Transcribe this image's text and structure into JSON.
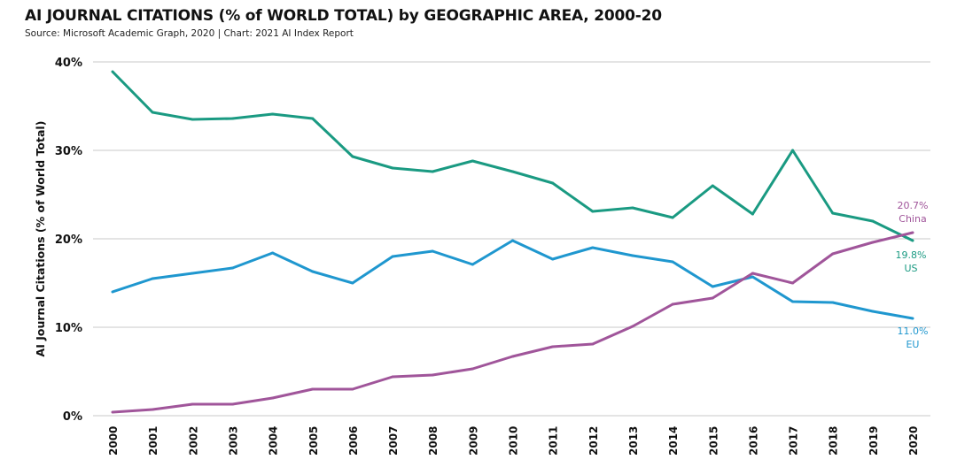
{
  "chart_data": {
    "type": "line",
    "title": "AI JOURNAL CITATIONS (% of WORLD TOTAL) by GEOGRAPHIC AREA, 2000-20",
    "subtitle": "Source: Microsoft Academic Graph, 2020 | Chart: 2021 AI Index Report",
    "xlabel": "",
    "ylabel": "AI Journal Citations (% of World Total)",
    "ylim": [
      0,
      40
    ],
    "yticks": [
      "0%",
      "10%",
      "20%",
      "30%",
      "40%"
    ],
    "grid": true,
    "x": [
      "2000",
      "2001",
      "2002",
      "2003",
      "2004",
      "2005",
      "2006",
      "2007",
      "2008",
      "2009",
      "2010",
      "2011",
      "2012",
      "2013",
      "2014",
      "2015",
      "2016",
      "2017",
      "2018",
      "2019",
      "2020"
    ],
    "series": [
      {
        "name": "US",
        "color": "#1a9a82",
        "end_label": "19.8%",
        "values": [
          38.9,
          34.3,
          33.5,
          33.6,
          34.1,
          33.6,
          29.3,
          28.0,
          27.6,
          28.8,
          27.6,
          26.3,
          23.1,
          23.5,
          22.4,
          26.0,
          22.8,
          30.0,
          22.9,
          22.0,
          19.8
        ]
      },
      {
        "name": "EU",
        "color": "#1f97cf",
        "end_label": "11.0%",
        "values": [
          14.0,
          15.5,
          16.1,
          16.7,
          18.4,
          16.3,
          15.0,
          18.0,
          18.6,
          17.1,
          19.8,
          17.7,
          19.0,
          18.1,
          17.4,
          14.6,
          15.7,
          12.9,
          12.8,
          11.8,
          11.0
        ]
      },
      {
        "name": "China",
        "color": "#a0559a",
        "end_label": "20.7%",
        "values": [
          0.4,
          0.7,
          1.3,
          1.3,
          2.0,
          3.0,
          3.0,
          4.4,
          4.6,
          5.3,
          6.7,
          7.8,
          8.1,
          10.1,
          12.6,
          13.3,
          16.1,
          15.0,
          18.3,
          19.6,
          20.7
        ]
      }
    ]
  }
}
